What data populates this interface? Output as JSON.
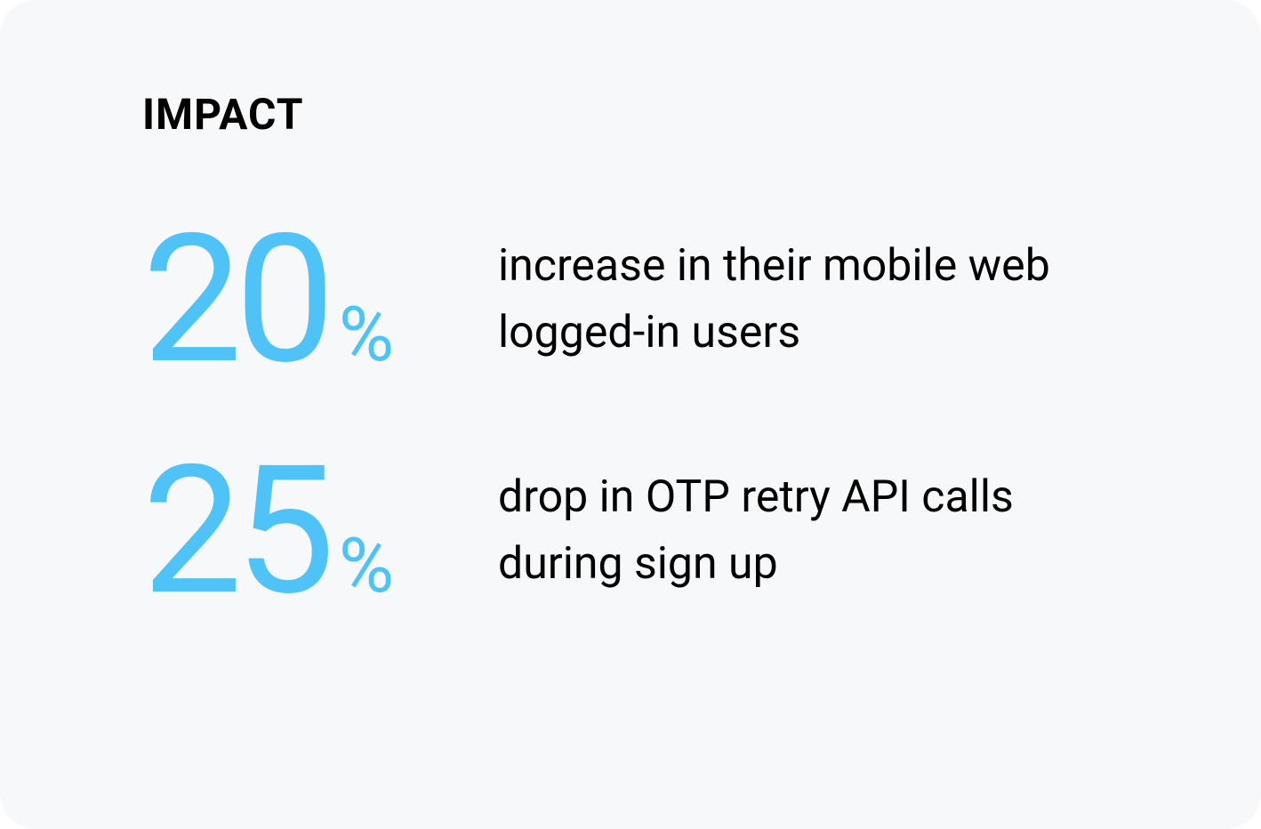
{
  "card": {
    "heading": "IMPACT",
    "background_color": "#f7f8fa",
    "border_radius": 40,
    "heading_color": "#000000",
    "heading_fontsize": 48,
    "heading_fontweight": 700,
    "accent_color": "#4fc3f7",
    "text_color": "#000000",
    "number_fontsize": 200,
    "percent_fontsize": 85,
    "description_fontsize": 50,
    "stats": [
      {
        "value": "20",
        "unit": "%",
        "description": "increase in their mobile web logged-in users"
      },
      {
        "value": "25",
        "unit": "%",
        "description": "drop in OTP retry API calls during sign up"
      }
    ]
  }
}
